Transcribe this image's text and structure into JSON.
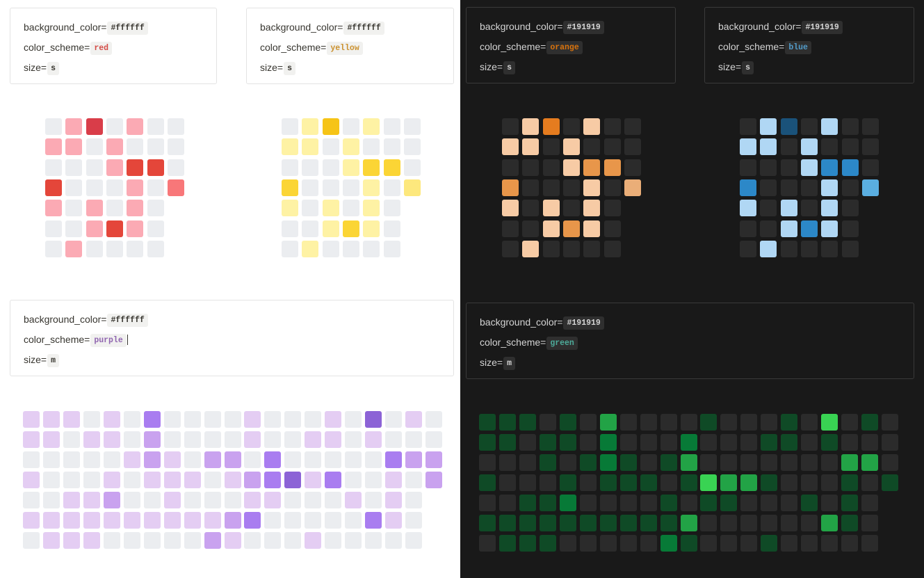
{
  "labels": {
    "background_color": "background_color=",
    "color_scheme": "color_scheme=",
    "size": "size="
  },
  "widgets": [
    {
      "id": "red-s",
      "config": {
        "background_color": "#ffffff",
        "color_scheme": "red",
        "size": "s"
      },
      "scheme_text_color": "#d44c47",
      "palette": [
        "#ebedf0",
        "#fbaab4",
        "#d93d49",
        "#e4463a",
        "#f87779"
      ],
      "rows": [
        "0120100",
        "1101000",
        "0001330",
        "3000104",
        "101010",
        "001310",
        "010000"
      ]
    },
    {
      "id": "yellow-s",
      "config": {
        "background_color": "#ffffff",
        "color_scheme": "yellow",
        "size": "s"
      },
      "scheme_text_color": "#cb912f",
      "palette": [
        "#ebedf0",
        "#fef2a4",
        "#f6c417",
        "#fbd535",
        "#fde87d"
      ],
      "rows": [
        "0120100",
        "1101000",
        "0001330",
        "3000104",
        "101010",
        "001310",
        "010000"
      ]
    },
    {
      "id": "orange-s",
      "config": {
        "background_color": "#191919",
        "color_scheme": "orange",
        "size": "s"
      },
      "scheme_text_color": "#d9730d",
      "palette": [
        "#2b2b2b",
        "#f7cba5",
        "#e57c1f",
        "#e8964a",
        "#eaae78"
      ],
      "rows": [
        "0120100",
        "1101000",
        "0001330",
        "3000104",
        "101010",
        "001310",
        "010000"
      ]
    },
    {
      "id": "blue-s",
      "config": {
        "background_color": "#191919",
        "color_scheme": "blue",
        "size": "s"
      },
      "scheme_text_color": "#529cca",
      "palette": [
        "#2b2b2b",
        "#b0d7f4",
        "#1a527a",
        "#2c88c8",
        "#5aaee0"
      ],
      "rows": [
        "0120100",
        "1101000",
        "0001330",
        "3000104",
        "101010",
        "001310",
        "010000"
      ]
    },
    {
      "id": "purple-m",
      "config": {
        "background_color": "#ffffff",
        "color_scheme": "purple",
        "size": "m"
      },
      "scheme_text_color": "#9065b0",
      "palette": [
        "#ebedf0",
        "#e4cdf3",
        "#c9a2ef",
        "#a97df0",
        "#8c63d6"
      ],
      "rows": [
        "111010300001000104010",
        "110110200001001101000",
        "000001210220300000322",
        "100010111012341300102",
        "00112001000110001010",
        "11111111112300000310",
        "01110000021000100000"
      ]
    },
    {
      "id": "green-m",
      "config": {
        "background_color": "#191919",
        "color_scheme": "green",
        "size": "m"
      },
      "scheme_text_color": "#4dab9a",
      "palette": [
        "#2b2b2b",
        "#0f4a26",
        "#077a37",
        "#22a346",
        "#39d353"
      ],
      "rows": [
        "111010300001000104010",
        "110110200020001101000",
        "000101210130000000330",
        "100010111014331000101",
        "00112000010110001010",
        "11111111113000000310",
        "01110000021000100000"
      ]
    }
  ]
}
